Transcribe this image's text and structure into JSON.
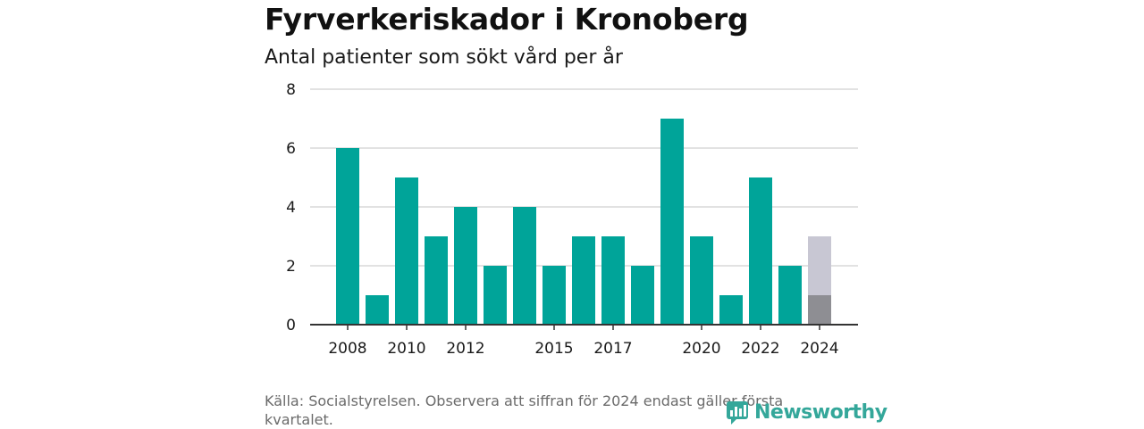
{
  "header": {
    "title": "Fyrverkeriskador i Kronoberg",
    "subtitle": "Antal patienter som sökt vård per år"
  },
  "footer": {
    "source": "Källa: Socialstyrelsen. Observera att siffran för 2024 endast gäller första kvartalet.",
    "logo_text": "Newsworthy"
  },
  "colors": {
    "bar": "#00a499",
    "highlight_total": "#c8c7d3",
    "highlight_partial": "#8e8e93",
    "grid": "#d9d9d9",
    "axis": "#333333",
    "logo": "#34a79a"
  },
  "chart_data": {
    "type": "bar",
    "title": "Fyrverkeriskador i Kronoberg",
    "subtitle": "Antal patienter som sökt vård per år",
    "categories": [
      "2008",
      "2009",
      "2010",
      "2011",
      "2012",
      "2013",
      "2014",
      "2015",
      "2016",
      "2017",
      "2018",
      "2019",
      "2020",
      "2021",
      "2022",
      "2023",
      "2024"
    ],
    "values": [
      6,
      1,
      5,
      3,
      4,
      2,
      4,
      2,
      3,
      3,
      2,
      7,
      3,
      1,
      5,
      2,
      3
    ],
    "highlight": {
      "category": "2024",
      "total": 3,
      "partial": 1
    },
    "x_tick_labels": [
      "2008",
      "2010",
      "2012",
      "2015",
      "2017",
      "2020",
      "2022",
      "2024"
    ],
    "y_ticks": [
      0,
      2,
      4,
      6,
      8
    ],
    "ylim": [
      0,
      8
    ],
    "grid": true
  }
}
